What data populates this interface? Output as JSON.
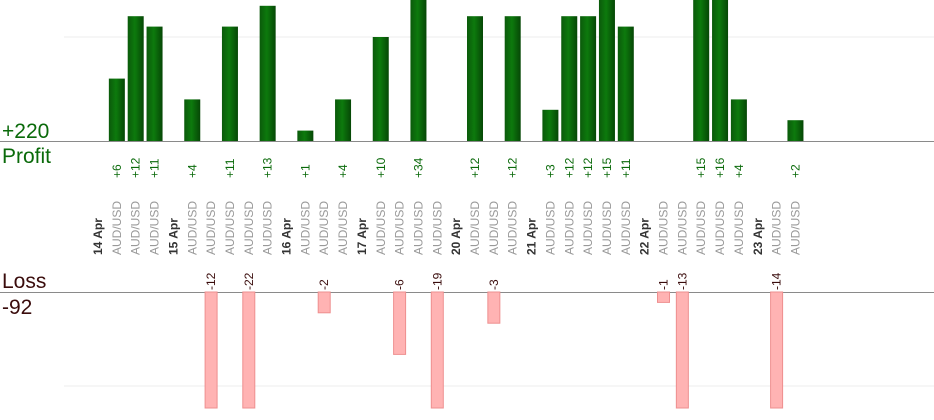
{
  "chart_data": {
    "type": "bar",
    "profit_total": "+220",
    "profit_label": "Profit",
    "loss_label": "Loss",
    "loss_total": "-92",
    "colors": {
      "profit_bar": "#0a6a0a",
      "profit_text": "#0a6a0a",
      "loss_bar": "#ffb3b3",
      "loss_border": "#ee8f8f",
      "loss_text": "#3a0c0c",
      "axis_text": "#999999",
      "date_text": "#333333"
    },
    "profit_ylim": [
      0,
      13
    ],
    "loss_ylim": [
      0,
      12
    ],
    "columns": [
      {
        "date": "14 Apr"
      },
      {
        "label": "AUD/USD",
        "profit": 6,
        "profit_text": "+6"
      },
      {
        "label": "AUD/USD",
        "profit": 12,
        "profit_text": "+12"
      },
      {
        "label": "AUD/USD",
        "profit": 11,
        "profit_text": "+11"
      },
      {
        "date": "15 Apr"
      },
      {
        "label": "AUD/USD",
        "profit": 4,
        "profit_text": "+4"
      },
      {
        "label": "AUD/USD",
        "loss": 12,
        "loss_text": "-12"
      },
      {
        "label": "AUD/USD",
        "profit": 11,
        "profit_text": "+11"
      },
      {
        "label": "AUD/USD",
        "loss": 22,
        "loss_text": "-22"
      },
      {
        "label": "AUD/USD",
        "profit": 13,
        "profit_text": "+13"
      },
      {
        "date": "16 Apr"
      },
      {
        "label": "AUD/USD",
        "profit": 1,
        "profit_text": "+1"
      },
      {
        "label": "AUD/USD",
        "loss": 2,
        "loss_text": "-2"
      },
      {
        "label": "AUD/USD",
        "profit": 4,
        "profit_text": "+4"
      },
      {
        "date": "17 Apr"
      },
      {
        "label": "AUD/USD",
        "profit": 10,
        "profit_text": "+10"
      },
      {
        "label": "AUD/USD",
        "loss": 6,
        "loss_text": "-6"
      },
      {
        "label": "AUD/USD",
        "profit": 34,
        "profit_text": "+34"
      },
      {
        "label": "AUD/USD",
        "loss": 19,
        "loss_text": "-19"
      },
      {
        "date": "20 Apr"
      },
      {
        "label": "AUD/USD",
        "profit": 12,
        "profit_text": "+12"
      },
      {
        "label": "AUD/USD",
        "loss": 3,
        "loss_text": "-3"
      },
      {
        "label": "AUD/USD",
        "profit": 12,
        "profit_text": "+12"
      },
      {
        "date": "21 Apr"
      },
      {
        "label": "AUD/USD",
        "profit": 3,
        "profit_text": "+3"
      },
      {
        "label": "AUD/USD",
        "profit": 12,
        "profit_text": "+12"
      },
      {
        "label": "AUD/USD",
        "profit": 12,
        "profit_text": "+12"
      },
      {
        "label": "AUD/USD",
        "profit": 15,
        "profit_text": "+15"
      },
      {
        "label": "AUD/USD",
        "profit": 11,
        "profit_text": "+11"
      },
      {
        "date": "22 Apr"
      },
      {
        "label": "AUD/USD",
        "loss": 1,
        "loss_text": "-1"
      },
      {
        "label": "AUD/USD",
        "loss": 13,
        "loss_text": "-13"
      },
      {
        "label": "AUD/USD",
        "profit": 15,
        "profit_text": "+15"
      },
      {
        "label": "AUD/USD",
        "profit": 16,
        "profit_text": "+16"
      },
      {
        "label": "AUD/USD",
        "profit": 4,
        "profit_text": "+4"
      },
      {
        "date": "23 Apr"
      },
      {
        "label": "AUD/USD",
        "loss": 14,
        "loss_text": "-14"
      },
      {
        "label": "AUD/USD",
        "profit": 2,
        "profit_text": "+2"
      }
    ]
  }
}
